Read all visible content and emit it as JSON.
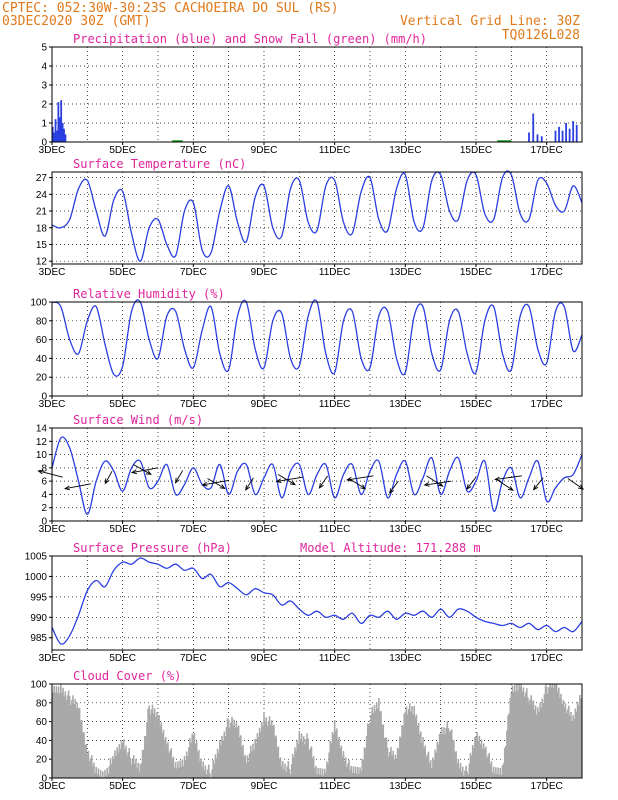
{
  "header": {
    "line1_left": "CPTEC:  052:30W-30:23S  CACHOEIRA DO SUL (RS)",
    "line2_left": "03DEC2020 30Z (GMT)",
    "line2_right": "Vertical Grid Line: 30Z",
    "line3_right": "TQ0126L028"
  },
  "x_ticks": [
    "3DEC",
    "5DEC",
    "7DEC",
    "9DEC",
    "11DEC",
    "13DEC",
    "15DEC",
    "17DEC"
  ],
  "colors": {
    "line": "#2b3fe0",
    "precip": "#2b3fe0",
    "snow": "#1a9a1a",
    "cloud": "#a9a9a9",
    "title": "#e0259b",
    "header": "#e07a1c"
  },
  "chart_data": [
    {
      "id": "precip",
      "type": "bar",
      "title": "Precipitation (blue) and Snow Fall (green) (mm/h)",
      "ylim": [
        0,
        5
      ],
      "yticks": [
        0,
        1,
        2,
        3,
        4,
        5
      ],
      "x_unit": "days since 3DEC",
      "series": [
        {
          "name": "Precipitation",
          "points": [
            [
              0.02,
              0.8
            ],
            [
              0.06,
              0.5
            ],
            [
              0.1,
              1.2
            ],
            [
              0.14,
              0.6
            ],
            [
              0.18,
              2.1
            ],
            [
              0.22,
              1.3
            ],
            [
              0.26,
              2.2
            ],
            [
              0.3,
              1.0
            ],
            [
              0.34,
              0.7
            ],
            [
              0.38,
              0.4
            ],
            [
              13.5,
              0.5
            ],
            [
              13.62,
              1.5
            ],
            [
              13.74,
              0.4
            ],
            [
              13.86,
              0.3
            ],
            [
              14.25,
              0.6
            ],
            [
              14.35,
              0.8
            ],
            [
              14.45,
              0.6
            ],
            [
              14.55,
              1.0
            ],
            [
              14.65,
              0.7
            ],
            [
              14.75,
              1.1
            ],
            [
              14.85,
              0.9
            ]
          ]
        },
        {
          "name": "Snow Fall",
          "points": []
        }
      ]
    },
    {
      "id": "temp",
      "type": "line",
      "title": "Surface Temperature (nC)",
      "ylim": [
        11.5,
        28
      ],
      "yticks": [
        12,
        15,
        18,
        21,
        24,
        27
      ],
      "x": [
        0,
        0.25,
        0.5,
        0.75,
        1,
        1.25,
        1.5,
        1.75,
        2,
        2.25,
        2.5,
        2.75,
        3,
        3.25,
        3.5,
        3.75,
        4,
        4.25,
        4.5,
        4.75,
        5,
        5.25,
        5.5,
        5.75,
        6,
        6.25,
        6.5,
        6.75,
        7,
        7.25,
        7.5,
        7.75,
        8,
        8.25,
        8.5,
        8.75,
        9,
        9.25,
        9.5,
        9.75,
        10,
        10.25,
        10.5,
        10.75,
        11,
        11.25,
        11.5,
        11.75,
        12,
        12.25,
        12.5,
        12.75,
        13,
        13.25,
        13.5,
        13.75,
        14,
        14.25,
        14.5,
        14.75,
        15
      ],
      "values": [
        18.5,
        18.0,
        19.5,
        25.0,
        26.5,
        21.0,
        16.5,
        23.0,
        24.5,
        17.0,
        12.0,
        18.0,
        19.5,
        15.0,
        13.0,
        21.0,
        22.5,
        14.0,
        13.5,
        21.0,
        25.5,
        19.0,
        15.5,
        23.5,
        25.5,
        18.0,
        16.5,
        25.0,
        26.5,
        19.0,
        17.5,
        25.5,
        26.5,
        19.0,
        17.0,
        24.5,
        27.0,
        19.5,
        17.5,
        25.0,
        27.5,
        19.0,
        18.0,
        26.5,
        27.5,
        21.0,
        19.5,
        26.5,
        27.5,
        20.5,
        19.5,
        27.0,
        27.5,
        20.5,
        19.5,
        26.5,
        26.0,
        22.0,
        21.0,
        25.5,
        22.5
      ],
      "series_name": "Temperature"
    },
    {
      "id": "rh",
      "type": "line",
      "title": "Relative Humidity (%)",
      "ylim": [
        0,
        100
      ],
      "yticks": [
        0,
        20,
        40,
        60,
        80,
        100
      ],
      "x": [
        0,
        0.25,
        0.5,
        0.75,
        1,
        1.25,
        1.5,
        1.75,
        2,
        2.25,
        2.5,
        2.75,
        3,
        3.25,
        3.5,
        3.75,
        4,
        4.25,
        4.5,
        4.75,
        5,
        5.25,
        5.5,
        5.75,
        6,
        6.25,
        6.5,
        6.75,
        7,
        7.25,
        7.5,
        7.75,
        8,
        8.25,
        8.5,
        8.75,
        9,
        9.25,
        9.5,
        9.75,
        10,
        10.25,
        10.5,
        10.75,
        11,
        11.25,
        11.5,
        11.75,
        12,
        12.25,
        12.5,
        12.75,
        13,
        13.25,
        13.5,
        13.75,
        14,
        14.25,
        14.5,
        14.75,
        15
      ],
      "values": [
        100,
        95,
        60,
        45,
        80,
        95,
        55,
        23,
        32,
        90,
        100,
        60,
        40,
        85,
        90,
        50,
        30,
        70,
        95,
        45,
        28,
        85,
        100,
        50,
        30,
        80,
        88,
        40,
        32,
        85,
        100,
        45,
        25,
        80,
        90,
        40,
        30,
        85,
        90,
        40,
        25,
        85,
        95,
        45,
        28,
        80,
        90,
        45,
        25,
        80,
        95,
        45,
        28,
        85,
        95,
        50,
        35,
        90,
        95,
        48,
        65
      ],
      "series_name": "Relative Humidity"
    },
    {
      "id": "wind",
      "type": "line",
      "title": "Surface Wind (m/s)",
      "ylim": [
        0,
        14
      ],
      "yticks": [
        0,
        2,
        4,
        6,
        8,
        10,
        12,
        14
      ],
      "x": [
        0,
        0.25,
        0.5,
        0.75,
        1,
        1.25,
        1.5,
        1.75,
        2,
        2.25,
        2.5,
        2.75,
        3,
        3.25,
        3.5,
        3.75,
        4,
        4.25,
        4.5,
        4.75,
        5,
        5.25,
        5.5,
        5.75,
        6,
        6.25,
        6.5,
        6.75,
        7,
        7.25,
        7.5,
        7.75,
        8,
        8.25,
        8.5,
        8.75,
        9,
        9.25,
        9.5,
        9.75,
        10,
        10.25,
        10.5,
        10.75,
        11,
        11.25,
        11.5,
        11.75,
        12,
        12.25,
        12.5,
        12.75,
        13,
        13.25,
        13.5,
        13.75,
        14,
        14.25,
        14.5,
        14.75,
        15
      ],
      "values": [
        8.0,
        12.5,
        11.0,
        6.0,
        1.0,
        6.0,
        9.0,
        7.5,
        4.5,
        8.0,
        9.0,
        5.0,
        6.0,
        8.5,
        4.0,
        5.5,
        8.0,
        5.5,
        5.0,
        8.5,
        4.0,
        7.5,
        8.5,
        4.0,
        6.5,
        8.5,
        3.5,
        7.5,
        8.5,
        4.0,
        7.0,
        8.5,
        3.5,
        7.0,
        8.5,
        4.0,
        7.5,
        9.0,
        3.5,
        7.0,
        9.0,
        4.0,
        6.5,
        9.5,
        4.0,
        7.5,
        9.5,
        4.5,
        6.0,
        9.0,
        1.5,
        6.0,
        8.0,
        3.5,
        6.5,
        9.0,
        3.0,
        5.0,
        6.5,
        7.0,
        10.0
      ],
      "series_name": "Wind Speed"
    },
    {
      "id": "press",
      "type": "line",
      "title": "Surface Pressure (hPa)",
      "subtitle": "Model Altitude: 171.288 m",
      "ylim": [
        982,
        1005
      ],
      "yticks": [
        985,
        990,
        995,
        1000,
        1005
      ],
      "x": [
        0,
        0.25,
        0.5,
        0.75,
        1,
        1.25,
        1.5,
        1.75,
        2,
        2.25,
        2.5,
        2.75,
        3,
        3.25,
        3.5,
        3.75,
        4,
        4.25,
        4.5,
        4.75,
        5,
        5.25,
        5.5,
        5.75,
        6,
        6.25,
        6.5,
        6.75,
        7,
        7.25,
        7.5,
        7.75,
        8,
        8.25,
        8.5,
        8.75,
        9,
        9.25,
        9.5,
        9.75,
        10,
        10.25,
        10.5,
        10.75,
        11,
        11.25,
        11.5,
        11.75,
        12,
        12.25,
        12.5,
        12.75,
        13,
        13.25,
        13.5,
        13.75,
        14,
        14.25,
        14.5,
        14.75,
        15
      ],
      "values": [
        987.5,
        983.5,
        985.5,
        990.5,
        996.5,
        999.0,
        997.5,
        1001.5,
        1003.5,
        1003.0,
        1004.5,
        1003.5,
        1003.0,
        1002.0,
        1003.0,
        1001.5,
        1002.0,
        999.5,
        1000.5,
        997.5,
        998.5,
        997.0,
        995.5,
        997.0,
        996.0,
        995.5,
        993.0,
        994.0,
        992.0,
        990.5,
        991.5,
        990.0,
        990.5,
        989.5,
        991.0,
        988.5,
        990.5,
        990.0,
        991.5,
        989.5,
        991.0,
        990.5,
        991.5,
        990.0,
        992.0,
        990.0,
        992.0,
        991.5,
        990.0,
        989.0,
        988.5,
        988.0,
        988.5,
        987.5,
        988.5,
        987.0,
        988.0,
        986.5,
        987.5,
        986.5,
        989.0
      ],
      "series_name": "Pressure"
    },
    {
      "id": "cloud",
      "type": "area",
      "title": "Cloud Cover (%)",
      "ylim": [
        0,
        100
      ],
      "yticks": [
        0,
        20,
        40,
        60,
        80,
        100
      ],
      "x": [
        0,
        0.25,
        0.5,
        0.75,
        1,
        1.25,
        1.5,
        1.75,
        2,
        2.25,
        2.5,
        2.75,
        3,
        3.25,
        3.5,
        3.75,
        4,
        4.25,
        4.5,
        4.75,
        5,
        5.25,
        5.5,
        5.75,
        6,
        6.25,
        6.5,
        6.75,
        7,
        7.25,
        7.5,
        7.75,
        8,
        8.25,
        8.5,
        8.75,
        9,
        9.25,
        9.5,
        9.75,
        10,
        10.25,
        10.5,
        10.75,
        11,
        11.25,
        11.5,
        11.75,
        12,
        12.25,
        12.5,
        12.75,
        13,
        13.25,
        13.5,
        13.75,
        14,
        14.25,
        14.5,
        14.75,
        15
      ],
      "values": [
        90,
        95,
        85,
        75,
        30,
        5,
        5,
        20,
        40,
        20,
        10,
        75,
        65,
        40,
        10,
        20,
        45,
        15,
        5,
        35,
        60,
        55,
        20,
        35,
        65,
        55,
        15,
        10,
        45,
        40,
        5,
        10,
        55,
        25,
        5,
        10,
        65,
        80,
        30,
        20,
        75,
        70,
        40,
        10,
        50,
        55,
        15,
        5,
        45,
        35,
        5,
        10,
        90,
        100,
        85,
        70,
        95,
        100,
        80,
        60,
        95
      ],
      "series_name": "Cloud Cover"
    }
  ]
}
